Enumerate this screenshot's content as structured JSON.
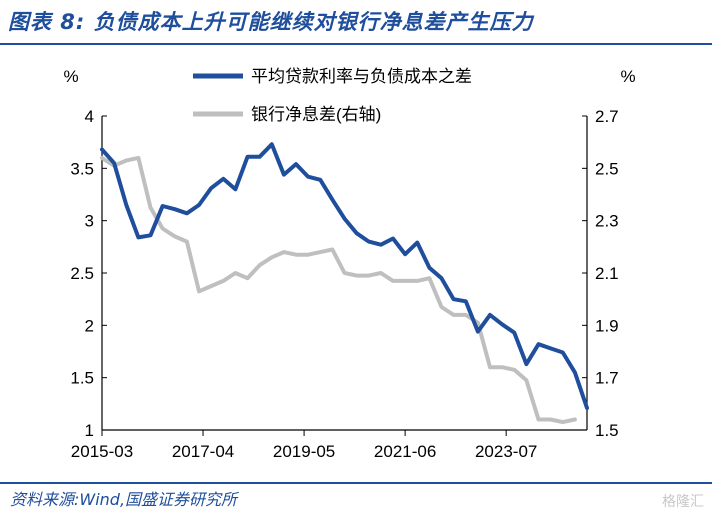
{
  "title": "图表 8:  负债成本上升可能继续对银行净息差产生压力",
  "source": "资料来源:Wind,国盛证券研究所",
  "watermark": "格隆汇",
  "colors": {
    "series1": "#1f4e9c",
    "series2": "#bfbfbf",
    "title": "#1f4e9c"
  },
  "chart_data": {
    "type": "line",
    "title": "",
    "x_ticks": [
      "2015-03",
      "2017-04",
      "2019-05",
      "2021-06",
      "2023-07"
    ],
    "x_range": [
      "2015-03",
      "2025-03"
    ],
    "y_left": {
      "unit": "%",
      "min": 1,
      "max": 4,
      "ticks": [
        "1",
        "1.5",
        "2",
        "2.5",
        "3",
        "3.5",
        "4"
      ]
    },
    "y_right": {
      "unit": "%",
      "min": 1.5,
      "max": 2.7,
      "ticks": [
        "1.5",
        "1.7",
        "1.9",
        "2.1",
        "2.3",
        "2.5",
        "2.7"
      ]
    },
    "legend_position": "top-center",
    "grid": false,
    "series": [
      {
        "name": "平均贷款利率与负债成本之差",
        "axis": "left",
        "color": "#1f4e9c",
        "x": [
          "2015-03",
          "2015-06",
          "2015-09",
          "2015-12",
          "2016-03",
          "2016-06",
          "2016-09",
          "2016-12",
          "2017-03",
          "2017-06",
          "2017-09",
          "2017-12",
          "2018-03",
          "2018-06",
          "2018-09",
          "2018-12",
          "2019-03",
          "2019-06",
          "2019-09",
          "2019-12",
          "2020-03",
          "2020-06",
          "2020-09",
          "2020-12",
          "2021-03",
          "2021-06",
          "2021-09",
          "2021-12",
          "2022-03",
          "2022-06",
          "2022-09",
          "2022-12",
          "2023-03",
          "2023-06",
          "2023-09",
          "2023-12",
          "2024-03",
          "2024-06",
          "2024-09",
          "2024-12",
          "2025-03"
        ],
        "values": [
          3.68,
          3.55,
          3.15,
          2.84,
          2.86,
          3.14,
          3.11,
          3.07,
          3.15,
          3.31,
          3.4,
          3.3,
          3.61,
          3.61,
          3.73,
          3.44,
          3.54,
          3.42,
          3.39,
          3.2,
          3.02,
          2.88,
          2.8,
          2.77,
          2.83,
          2.68,
          2.79,
          2.55,
          2.45,
          2.25,
          2.23,
          1.94,
          2.1,
          2.01,
          1.93,
          1.63,
          1.82,
          1.78,
          1.74,
          1.55,
          1.21
        ]
      },
      {
        "name": "银行净息差(右轴)",
        "axis": "right",
        "color": "#bfbfbf",
        "x": [
          "2015-03",
          "2015-06",
          "2015-09",
          "2015-12",
          "2016-03",
          "2016-06",
          "2016-09",
          "2016-12",
          "2017-03",
          "2017-06",
          "2017-09",
          "2017-12",
          "2018-03",
          "2018-06",
          "2018-09",
          "2018-12",
          "2019-03",
          "2019-06",
          "2019-09",
          "2019-12",
          "2020-03",
          "2020-06",
          "2020-09",
          "2020-12",
          "2021-03",
          "2021-06",
          "2021-09",
          "2021-12",
          "2022-03",
          "2022-06",
          "2022-09",
          "2022-12",
          "2023-03",
          "2023-06",
          "2023-09",
          "2023-12",
          "2024-03",
          "2024-06",
          "2024-09",
          "2024-12"
        ],
        "values": [
          2.54,
          2.51,
          2.53,
          2.54,
          2.35,
          2.27,
          2.24,
          2.22,
          2.03,
          2.05,
          2.07,
          2.1,
          2.08,
          2.13,
          2.16,
          2.18,
          2.17,
          2.17,
          2.18,
          2.19,
          2.1,
          2.09,
          2.09,
          2.1,
          2.07,
          2.07,
          2.07,
          2.08,
          1.97,
          1.94,
          1.94,
          1.91,
          1.74,
          1.74,
          1.73,
          1.69,
          1.54,
          1.54,
          1.53,
          1.54
        ]
      }
    ]
  }
}
